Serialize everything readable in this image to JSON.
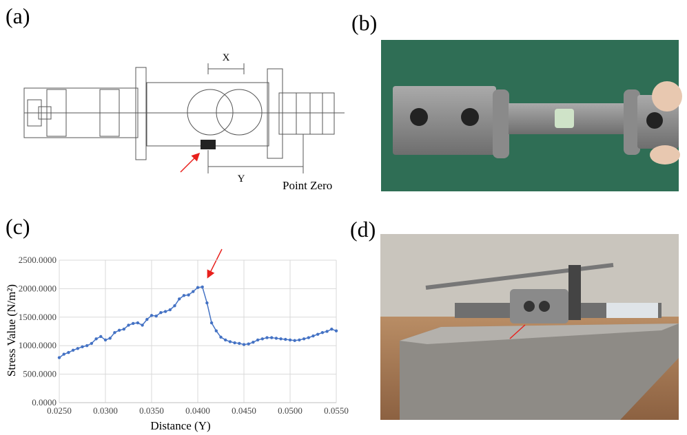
{
  "panel_labels": [
    "(a)",
    "(b)",
    "(c)",
    "(d)"
  ],
  "diagram": {
    "x_label": "X",
    "y_label": "Y",
    "point_zero": "Point Zero"
  },
  "chart_data": {
    "type": "line",
    "x_label": "Distance (Y)",
    "y_label": "Stress Value (N/m²)",
    "x": [
      0.025,
      0.0255,
      0.026,
      0.0265,
      0.027,
      0.0275,
      0.028,
      0.0285,
      0.029,
      0.0295,
      0.03,
      0.0305,
      0.031,
      0.0315,
      0.032,
      0.0325,
      0.033,
      0.0335,
      0.034,
      0.0345,
      0.035,
      0.0355,
      0.036,
      0.0365,
      0.037,
      0.0375,
      0.038,
      0.0385,
      0.039,
      0.0395,
      0.04,
      0.0405,
      0.041,
      0.0415,
      0.042,
      0.0425,
      0.043,
      0.0435,
      0.044,
      0.0445,
      0.045,
      0.0455,
      0.046,
      0.0465,
      0.047,
      0.0475,
      0.048,
      0.0485,
      0.049,
      0.0495,
      0.05,
      0.0505,
      0.051,
      0.0515,
      0.052,
      0.0525,
      0.053,
      0.0535,
      0.054,
      0.0545,
      0.055
    ],
    "series": [
      {
        "color": "#4472c4",
        "values": [
          790,
          850,
          880,
          920,
          950,
          980,
          1000,
          1040,
          1120,
          1160,
          1100,
          1130,
          1230,
          1270,
          1290,
          1360,
          1390,
          1400,
          1360,
          1460,
          1530,
          1520,
          1580,
          1600,
          1630,
          1700,
          1820,
          1880,
          1890,
          1950,
          2020,
          2030,
          1750,
          1400,
          1260,
          1150,
          1100,
          1070,
          1050,
          1040,
          1020,
          1030,
          1060,
          1100,
          1120,
          1140,
          1140,
          1130,
          1120,
          1110,
          1100,
          1090,
          1100,
          1120,
          1140,
          1170,
          1200,
          1230,
          1250,
          1290,
          1260
        ]
      }
    ],
    "xlim": [
      0.025,
      0.055
    ],
    "xticks": [
      {
        "value": 0.025,
        "label": "0.0250"
      },
      {
        "value": 0.03,
        "label": "0.0300"
      },
      {
        "value": 0.035,
        "label": "0.0350"
      },
      {
        "value": 0.04,
        "label": "0.0400"
      },
      {
        "value": 0.045,
        "label": "0.0450"
      },
      {
        "value": 0.05,
        "label": "0.0500"
      },
      {
        "value": 0.055,
        "label": "0.0550"
      }
    ],
    "ylim": [
      0,
      2500
    ],
    "yticks": [
      {
        "value": 0,
        "label": "0.0000"
      },
      {
        "value": 500,
        "label": "500.0000"
      },
      {
        "value": 1000,
        "label": "1000.0000"
      },
      {
        "value": 1500,
        "label": "1500.0000"
      },
      {
        "value": 2000,
        "label": "2000.0000"
      },
      {
        "value": 2500,
        "label": "2500.0000"
      }
    ],
    "grid": true
  }
}
